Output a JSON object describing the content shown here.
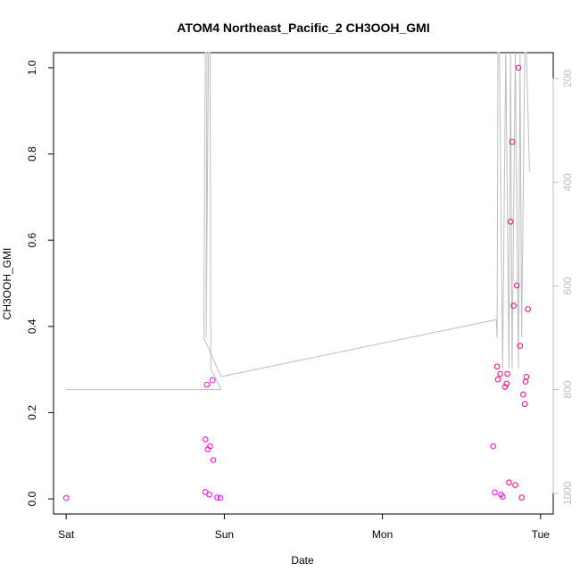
{
  "chart_data": {
    "type": "scatter",
    "title": "ATOM4 Northeast_Pacific_2 CH3OOH_GMI",
    "xlabel": "Date",
    "ylabel": "CH3OOH_GMI",
    "x_ticks": [
      {
        "x": 0,
        "label": "Sat"
      },
      {
        "x": 1,
        "label": "Sun"
      },
      {
        "x": 2,
        "label": "Mon"
      },
      {
        "x": 3,
        "label": "Tue"
      }
    ],
    "y_ticks": [
      {
        "y": 0.0,
        "label": "0.0"
      },
      {
        "y": 0.2,
        "label": "0.2"
      },
      {
        "y": 0.4,
        "label": "0.4"
      },
      {
        "y": 0.6,
        "label": "0.6"
      },
      {
        "y": 0.8,
        "label": "0.8"
      },
      {
        "y": 1.0,
        "label": "1.0"
      }
    ],
    "y2_ticks": [
      {
        "p": 200,
        "label": "200"
      },
      {
        "p": 400,
        "label": "400"
      },
      {
        "p": 600,
        "label": "600"
      },
      {
        "p": 800,
        "label": "800"
      },
      {
        "p": 1000,
        "label": "1000"
      }
    ],
    "xlim": [
      -0.08,
      3.08
    ],
    "ylim": [
      -0.035,
      1.035
    ],
    "y2lim": [
      1040,
      150
    ],
    "series": [
      {
        "color": "#ff00ff",
        "points": [
          [
            0.0,
            0.002
          ],
          [
            0.88,
            0.138
          ],
          [
            0.895,
            0.115
          ],
          [
            0.91,
            0.122
          ],
          [
            0.93,
            0.09
          ],
          [
            0.88,
            0.016
          ],
          [
            0.905,
            0.01
          ],
          [
            0.955,
            0.003
          ],
          [
            0.975,
            0.002
          ],
          [
            0.89,
            0.265
          ],
          [
            0.925,
            0.275
          ],
          [
            2.7,
            0.122
          ],
          [
            2.71,
            0.015
          ],
          [
            2.75,
            0.01
          ],
          [
            2.76,
            0.005
          ]
        ]
      },
      {
        "color": "#ff0080",
        "points": [
          [
            2.725,
            0.307
          ],
          [
            2.73,
            0.277
          ],
          [
            2.745,
            0.29
          ],
          [
            2.775,
            0.26
          ],
          [
            2.785,
            0.267
          ],
          [
            2.79,
            0.29
          ],
          [
            2.8,
            0.038
          ],
          [
            2.81,
            0.643
          ],
          [
            2.82,
            0.828
          ],
          [
            2.83,
            0.448
          ],
          [
            2.84,
            0.032
          ],
          [
            2.85,
            0.495
          ],
          [
            2.86,
            1.0
          ],
          [
            2.87,
            0.355
          ],
          [
            2.89,
            0.242
          ],
          [
            2.88,
            0.003
          ],
          [
            2.9,
            0.22
          ],
          [
            2.905,
            0.272
          ],
          [
            2.91,
            0.283
          ],
          [
            2.92,
            0.44
          ]
        ]
      }
    ],
    "pressure_line": {
      "color": "#bebebe",
      "points": [
        [
          0.0,
          800
        ],
        [
          0.98,
          800
        ],
        [
          0.915,
          760
        ],
        [
          0.91,
          150
        ],
        [
          0.9,
          150
        ],
        [
          0.885,
          700
        ],
        [
          0.89,
          150
        ],
        [
          0.88,
          150
        ],
        [
          0.87,
          700
        ],
        [
          0.98,
          775
        ],
        [
          2.72,
          665
        ],
        [
          2.725,
          700
        ],
        [
          2.73,
          150
        ],
        [
          2.74,
          150
        ],
        [
          2.76,
          760
        ],
        [
          2.78,
          150
        ],
        [
          2.8,
          760
        ],
        [
          2.81,
          150
        ],
        [
          2.82,
          760
        ],
        [
          2.84,
          150
        ],
        [
          2.86,
          760
        ],
        [
          2.87,
          150
        ],
        [
          2.88,
          700
        ],
        [
          2.9,
          150
        ],
        [
          2.91,
          150
        ],
        [
          2.93,
          380
        ]
      ]
    }
  }
}
